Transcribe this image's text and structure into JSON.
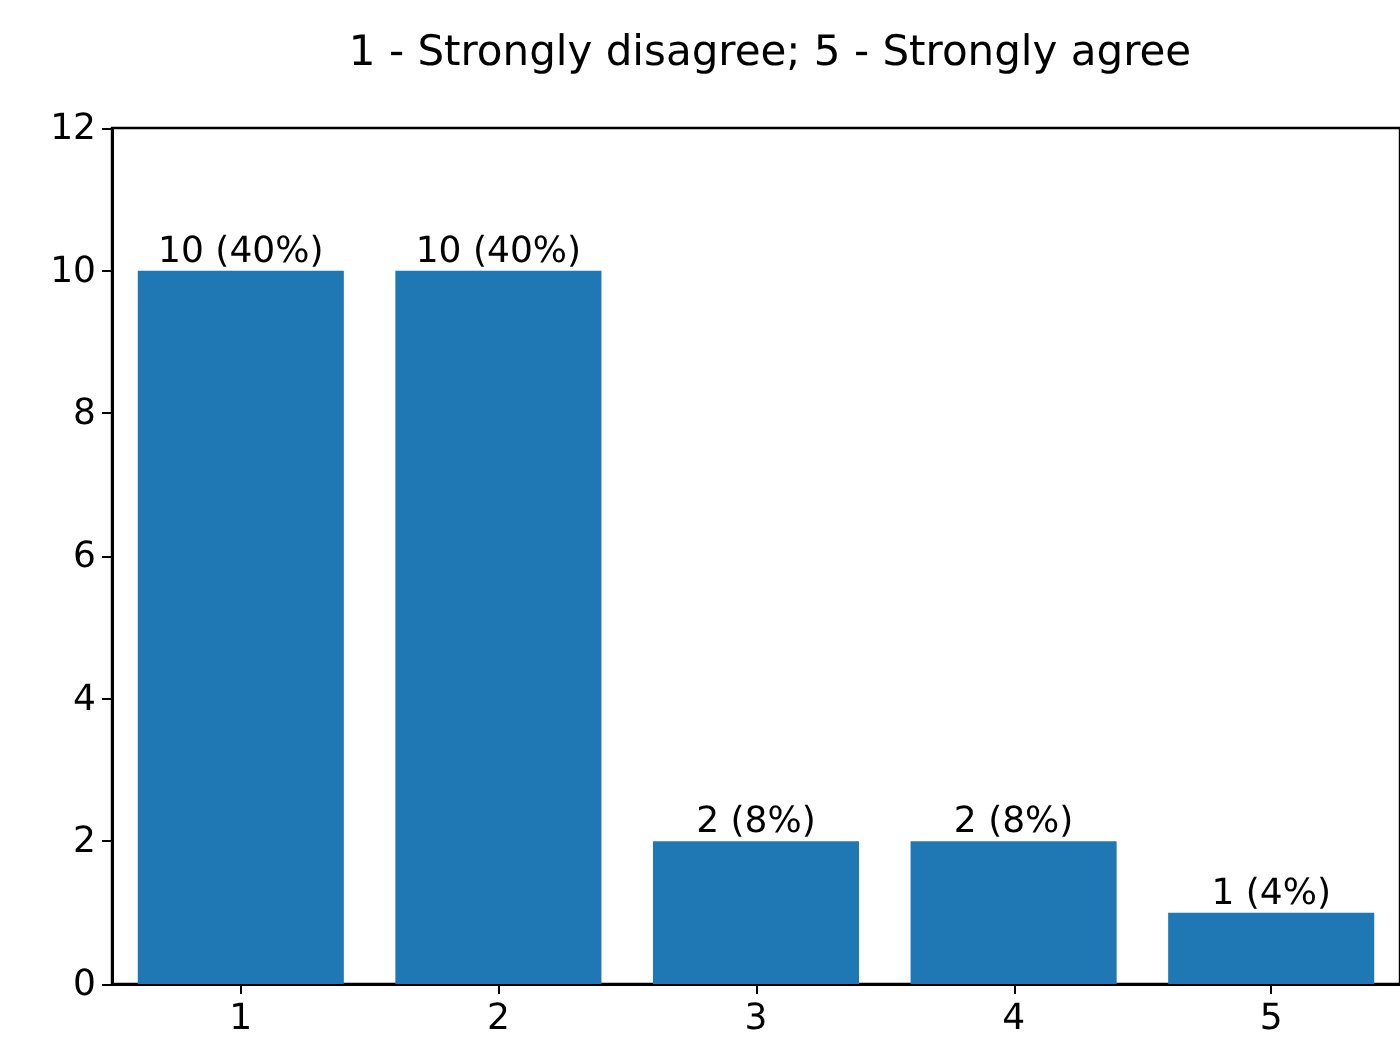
{
  "chart_data": {
    "type": "bar",
    "title": "1 - Strongly disagree; 5 - Strongly agree",
    "categories": [
      "1",
      "2",
      "3",
      "4",
      "5"
    ],
    "values": [
      10,
      10,
      2,
      2,
      1
    ],
    "value_labels": [
      "10 (40%)",
      "10 (40%)",
      "2 (8%)",
      "2 (8%)",
      "1 (4%)"
    ],
    "color": "#1f77b4",
    "ylim": [
      0,
      12
    ],
    "yticks": [
      0,
      2,
      4,
      6,
      8,
      10,
      12
    ],
    "grid": false
  }
}
